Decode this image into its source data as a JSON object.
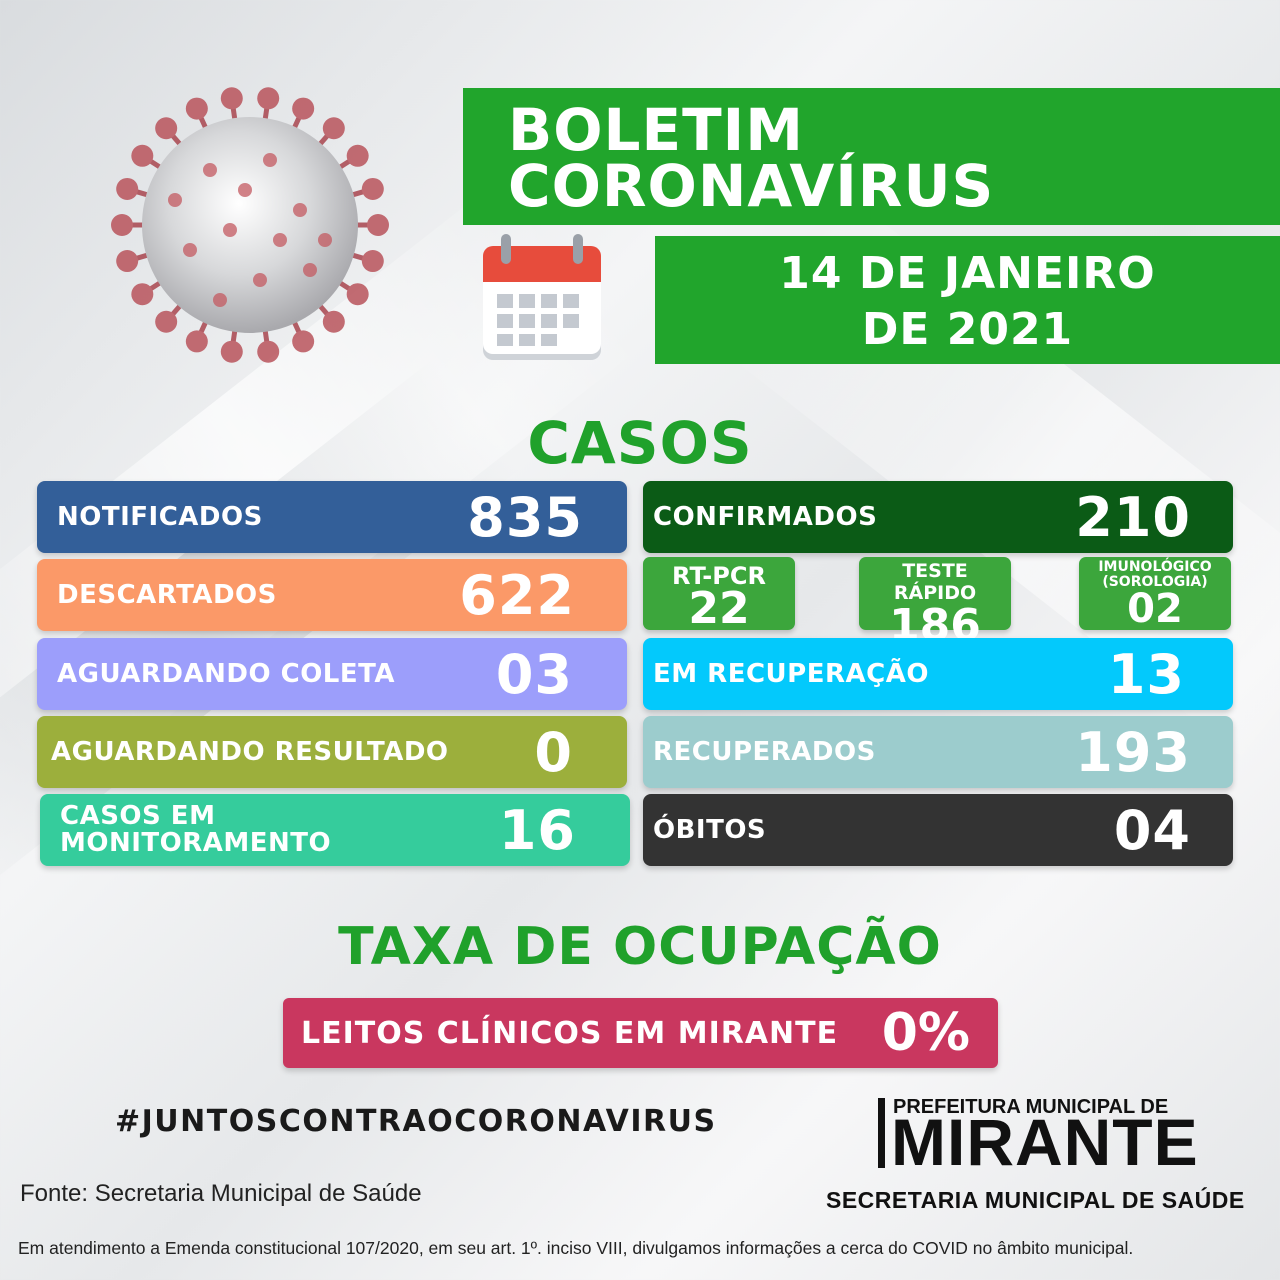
{
  "header": {
    "title_line1": "BOLETIM",
    "title_line2": "CORONAVÍRUS",
    "date_line1": "14 DE JANEIRO",
    "date_line2": "DE 2021"
  },
  "casos": {
    "title": "CASOS",
    "left": [
      {
        "label": "NOTIFICADOS",
        "value": "835",
        "color": "#335f99"
      },
      {
        "label": "DESCARTADOS",
        "value": "622",
        "color": "#fb9968"
      },
      {
        "label": "AGUARDANDO COLETA",
        "value": "03",
        "color": "#9c9efb"
      },
      {
        "label": "AGUARDANDO RESULTADO",
        "value": "0",
        "color": "#9caf3c"
      },
      {
        "label_line1": "CASOS EM",
        "label_line2": "MONITORAMENTO",
        "value": "16",
        "color": "#35cc9c"
      }
    ],
    "confirmados": {
      "label": "CONFIRMADOS",
      "value": "210",
      "color": "#0b5b16"
    },
    "tests": [
      {
        "label": "RT-PCR",
        "value": "22"
      },
      {
        "label": "TESTE RÁPIDO",
        "value": "186"
      },
      {
        "label_line1": "IMUNOLÓGICO",
        "label_line2": "(SOROLOGIA)",
        "value": "02"
      }
    ],
    "right": [
      {
        "label": "EM RECUPERAÇÃO",
        "value": "13",
        "color": "#03c9fc"
      },
      {
        "label": "RECUPERADOS",
        "value": "193",
        "color": "#9ccccd"
      },
      {
        "label": "ÓBITOS",
        "value": "04",
        "color": "#333333"
      }
    ]
  },
  "taxa": {
    "title": "TAXA DE OCUPAÇÃO",
    "leitos_label": "LEITOS CLÍNICOS EM MIRANTE",
    "leitos_value": "0%"
  },
  "footer": {
    "hashtag": "#JUNTOSCONTRAOCORONAVIRUS",
    "fonte": "Fonte: Secretaria Municipal de Saúde",
    "note": "Em atendimento a Emenda constitucional 107/2020, em seu art. 1º. inciso VIII, divulgamos informações a cerca do COVID no âmbito municipal.",
    "logo_top": "PREFEITURA MUNICIPAL DE",
    "logo_main": "MIRANTE",
    "logo_sub": "SECRETARIA MUNICIPAL DE SAÚDE"
  }
}
